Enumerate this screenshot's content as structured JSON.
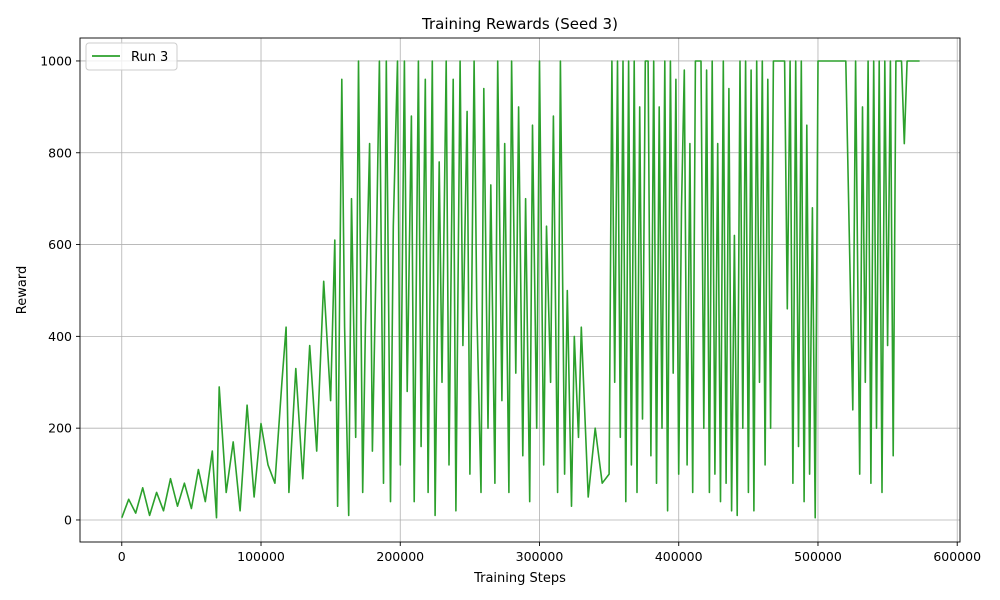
{
  "chart_data": {
    "type": "line",
    "title": "Training Rewards (Seed 3)",
    "xlabel": "Training Steps",
    "ylabel": "Reward",
    "xlim": [
      -30000,
      602000
    ],
    "ylim": [
      -48,
      1050
    ],
    "xticks": [
      0,
      100000,
      200000,
      300000,
      400000,
      500000,
      600000
    ],
    "yticks": [
      0,
      200,
      400,
      600,
      800,
      1000
    ],
    "grid": true,
    "legend_position": "top-left",
    "colors": {
      "series": "#2ca02c",
      "grid": "#b0b0b0",
      "axes": "#000000"
    },
    "series": [
      {
        "name": "Run 3",
        "x": [
          0,
          5000,
          10000,
          15000,
          20000,
          25000,
          30000,
          35000,
          40000,
          45000,
          50000,
          55000,
          60000,
          65000,
          68000,
          70000,
          75000,
          80000,
          85000,
          90000,
          95000,
          100000,
          105000,
          110000,
          115000,
          118000,
          120000,
          125000,
          130000,
          135000,
          140000,
          145000,
          150000,
          153000,
          155000,
          158000,
          160000,
          163000,
          165000,
          168000,
          170000,
          173000,
          175000,
          178000,
          180000,
          183000,
          185000,
          188000,
          190000,
          193000,
          195000,
          198000,
          200000,
          203000,
          205000,
          208000,
          210000,
          213000,
          215000,
          218000,
          220000,
          223000,
          225000,
          228000,
          230000,
          233000,
          235000,
          238000,
          240000,
          243000,
          245000,
          248000,
          250000,
          253000,
          255000,
          258000,
          260000,
          263000,
          265000,
          268000,
          270000,
          273000,
          275000,
          278000,
          280000,
          283000,
          285000,
          288000,
          290000,
          293000,
          295000,
          298000,
          300000,
          303000,
          305000,
          308000,
          310000,
          313000,
          315000,
          318000,
          320000,
          323000,
          325000,
          328000,
          330000,
          335000,
          340000,
          345000,
          350000,
          352000,
          354000,
          356000,
          358000,
          360000,
          362000,
          364000,
          366000,
          368000,
          370000,
          372000,
          374000,
          376000,
          378000,
          380000,
          382000,
          384000,
          386000,
          388000,
          390000,
          392000,
          394000,
          396000,
          398000,
          400000,
          402000,
          404000,
          406000,
          408000,
          410000,
          412000,
          414000,
          416000,
          418000,
          420000,
          422000,
          424000,
          426000,
          428000,
          430000,
          432000,
          434000,
          436000,
          438000,
          440000,
          442000,
          444000,
          446000,
          448000,
          450000,
          452000,
          454000,
          456000,
          458000,
          460000,
          462000,
          464000,
          466000,
          468000,
          470000,
          472000,
          474000,
          476000,
          478000,
          480000,
          482000,
          484000,
          486000,
          488000,
          490000,
          492000,
          494000,
          496000,
          498000,
          500000,
          510000,
          520000,
          525000,
          527000,
          530000,
          532000,
          534000,
          536000,
          538000,
          540000,
          542000,
          544000,
          546000,
          548000,
          550000,
          552000,
          554000,
          556000,
          560000,
          562000,
          564000,
          568000,
          573000
        ],
        "values": [
          5,
          45,
          15,
          70,
          10,
          60,
          20,
          90,
          30,
          80,
          25,
          110,
          40,
          150,
          5,
          290,
          60,
          170,
          20,
          250,
          50,
          210,
          120,
          80,
          300,
          420,
          60,
          330,
          90,
          380,
          150,
          520,
          260,
          610,
          30,
          960,
          420,
          10,
          700,
          180,
          1000,
          60,
          420,
          820,
          150,
          620,
          1000,
          80,
          1000,
          40,
          640,
          1000,
          120,
          1000,
          280,
          880,
          40,
          1000,
          160,
          960,
          60,
          1000,
          10,
          780,
          300,
          1000,
          120,
          960,
          20,
          1000,
          380,
          890,
          100,
          1000,
          460,
          60,
          940,
          200,
          730,
          80,
          1000,
          260,
          820,
          60,
          1000,
          320,
          900,
          140,
          700,
          40,
          860,
          200,
          1000,
          120,
          640,
          300,
          880,
          60,
          1000,
          100,
          500,
          30,
          400,
          180,
          420,
          50,
          200,
          80,
          100,
          1000,
          300,
          1000,
          180,
          1000,
          40,
          1000,
          120,
          1000,
          60,
          900,
          220,
          1000,
          1000,
          140,
          1000,
          80,
          900,
          200,
          1000,
          20,
          1000,
          320,
          960,
          100,
          680,
          980,
          120,
          820,
          60,
          1000,
          1000,
          1000,
          200,
          980,
          60,
          1000,
          100,
          820,
          40,
          1000,
          80,
          940,
          20,
          620,
          10,
          1000,
          200,
          1000,
          60,
          980,
          20,
          1000,
          300,
          1000,
          120,
          960,
          200,
          1000,
          1000,
          1000,
          1000,
          1000,
          460,
          1000,
          80,
          1000,
          160,
          1000,
          40,
          860,
          100,
          680,
          5,
          1000,
          1000,
          1000,
          240,
          1000,
          100,
          900,
          300,
          1000,
          80,
          1000,
          200,
          1000,
          60,
          1000,
          380,
          1000,
          140,
          1000,
          1000,
          820,
          1000,
          1000,
          1000
        ]
      }
    ]
  }
}
